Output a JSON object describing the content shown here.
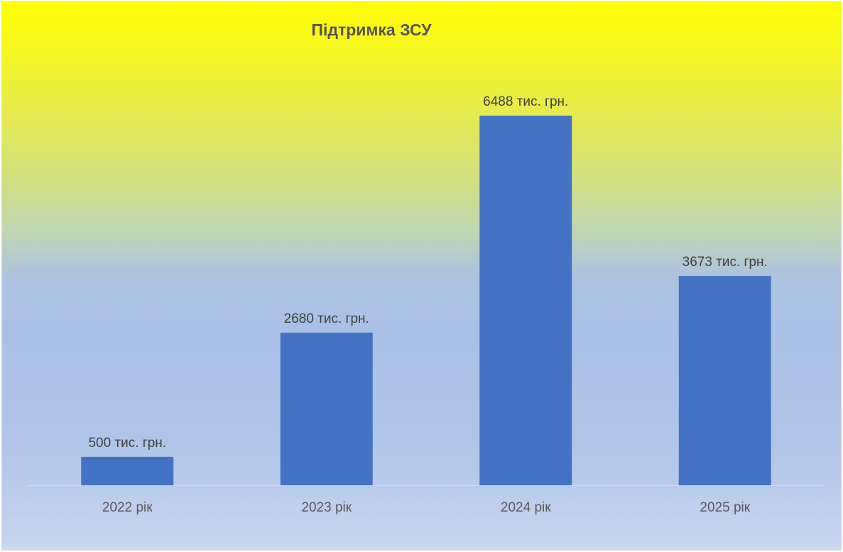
{
  "chart_data": {
    "type": "bar",
    "title": "Підтримка ЗСУ",
    "categories": [
      "2022 рік",
      "2023 рік",
      "2024 рік",
      "2025 рік"
    ],
    "values": [
      500,
      2680,
      6488,
      3673
    ],
    "data_labels": [
      "500 тис. грн.",
      "2680 тис. грн.",
      "6488 тис. грн.",
      "3673 тис. грн."
    ],
    "xlabel": "",
    "ylabel": "",
    "grid": false,
    "legend": "none",
    "colors": {
      "bar": "#4472c4",
      "text": "#404040",
      "title": "#555555",
      "axis": "#d9d9d9"
    }
  }
}
